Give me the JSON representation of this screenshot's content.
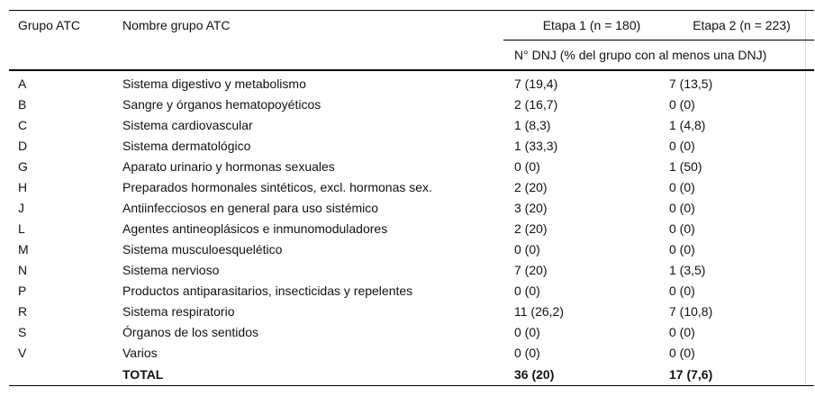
{
  "table": {
    "headers": {
      "grupo": "Grupo ATC",
      "nombre": "Nombre grupo ATC",
      "etapa1": "Etapa 1 (n = 180)",
      "etapa2": "Etapa 2 (n = 223)",
      "subheader": "N° DNJ (% del grupo con al menos una DNJ)"
    },
    "rows": [
      {
        "grupo": "A",
        "nombre": "Sistema digestivo y metabolismo",
        "etapa1": "7 (19,4)",
        "etapa2": "7 (13,5)"
      },
      {
        "grupo": "B",
        "nombre": "Sangre y órganos hematopoyéticos",
        "etapa1": "2 (16,7)",
        "etapa2": "0 (0)"
      },
      {
        "grupo": "C",
        "nombre": "Sistema cardiovascular",
        "etapa1": "1 (8,3)",
        "etapa2": "1 (4,8)"
      },
      {
        "grupo": "D",
        "nombre": "Sistema dermatológico",
        "etapa1": "1 (33,3)",
        "etapa2": "0 (0)"
      },
      {
        "grupo": "G",
        "nombre": "Aparato urinario y hormonas sexuales",
        "etapa1": "0 (0)",
        "etapa2": "1 (50)"
      },
      {
        "grupo": "H",
        "nombre": "Preparados hormonales sintéticos, excl. hormonas sex.",
        "etapa1": "2 (20)",
        "etapa2": "0 (0)"
      },
      {
        "grupo": "J",
        "nombre": "Antiinfecciosos en general para uso sistémico",
        "etapa1": "3 (20)",
        "etapa2": "0 (0)"
      },
      {
        "grupo": "L",
        "nombre": "Agentes antineoplásicos e inmunomoduladores",
        "etapa1": "2 (20)",
        "etapa2": "0 (0)"
      },
      {
        "grupo": "M",
        "nombre": "Sistema musculoesquelético",
        "etapa1": "0 (0)",
        "etapa2": "0 (0)"
      },
      {
        "grupo": "N",
        "nombre": "Sistema nervioso",
        "etapa1": "7 (20)",
        "etapa2": "1 (3,5)"
      },
      {
        "grupo": "P",
        "nombre": "Productos antiparasitarios, insecticidas y repelentes",
        "etapa1": "0 (0)",
        "etapa2": "0 (0)"
      },
      {
        "grupo": "R",
        "nombre": "Sistema respiratorio",
        "etapa1": "11 (26,2)",
        "etapa2": "7 (10,8)"
      },
      {
        "grupo": "S",
        "nombre": "Órganos de los sentidos",
        "etapa1": "0 (0)",
        "etapa2": "0 (0)"
      },
      {
        "grupo": "V",
        "nombre": "Varios",
        "etapa1": "0 (0)",
        "etapa2": "0 (0)"
      }
    ],
    "total": {
      "grupo": "",
      "nombre": "TOTAL",
      "etapa1": "36 (20)",
      "etapa2": "17 (7,6)"
    }
  }
}
